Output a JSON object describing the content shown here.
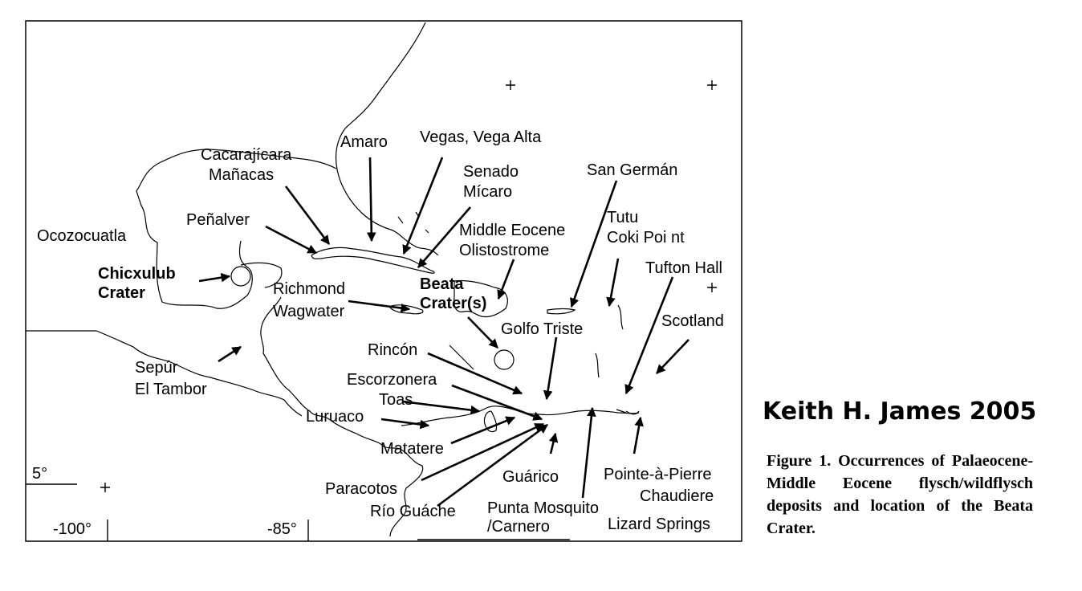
{
  "map": {
    "place_labels": [
      "Amaro",
      "Vegas, Vega Alta",
      "Cacarajícara",
      "Mañacas",
      "Senado",
      "Mícaro",
      "San Germán",
      "Peñalver",
      "Middle Eocene",
      "Olistostrome",
      "Tutu",
      "Coki Poi nt",
      "Ocozocuatla",
      "Tufton Hall",
      "Chicxulub",
      "Crater",
      "Richmond",
      "Wagwater",
      "Beata",
      "Crater(s)",
      "Scotland",
      "Golfo Triste",
      "Rincón",
      "Sepúr",
      "El Tambor",
      "Escorzonera",
      "Toas",
      "Luruaco",
      "Matatere",
      "Pointe-à-Pierre",
      "Chaudiere",
      "Guárico",
      "Paracotos",
      "Río Guáche",
      "Punta Mosquito",
      "/Carnero",
      "Lizard Springs"
    ],
    "coordinate_labels": [
      "5°",
      "-100°",
      "-85°"
    ],
    "arrow_color": "#000000",
    "coastline_color": "#000000"
  },
  "credit": "Keith H. James 2005",
  "caption": "Figure 1. Occurrences of Palaeocene-Middle Eocene flysch/wildflysch deposits and location of the Beata Crater."
}
